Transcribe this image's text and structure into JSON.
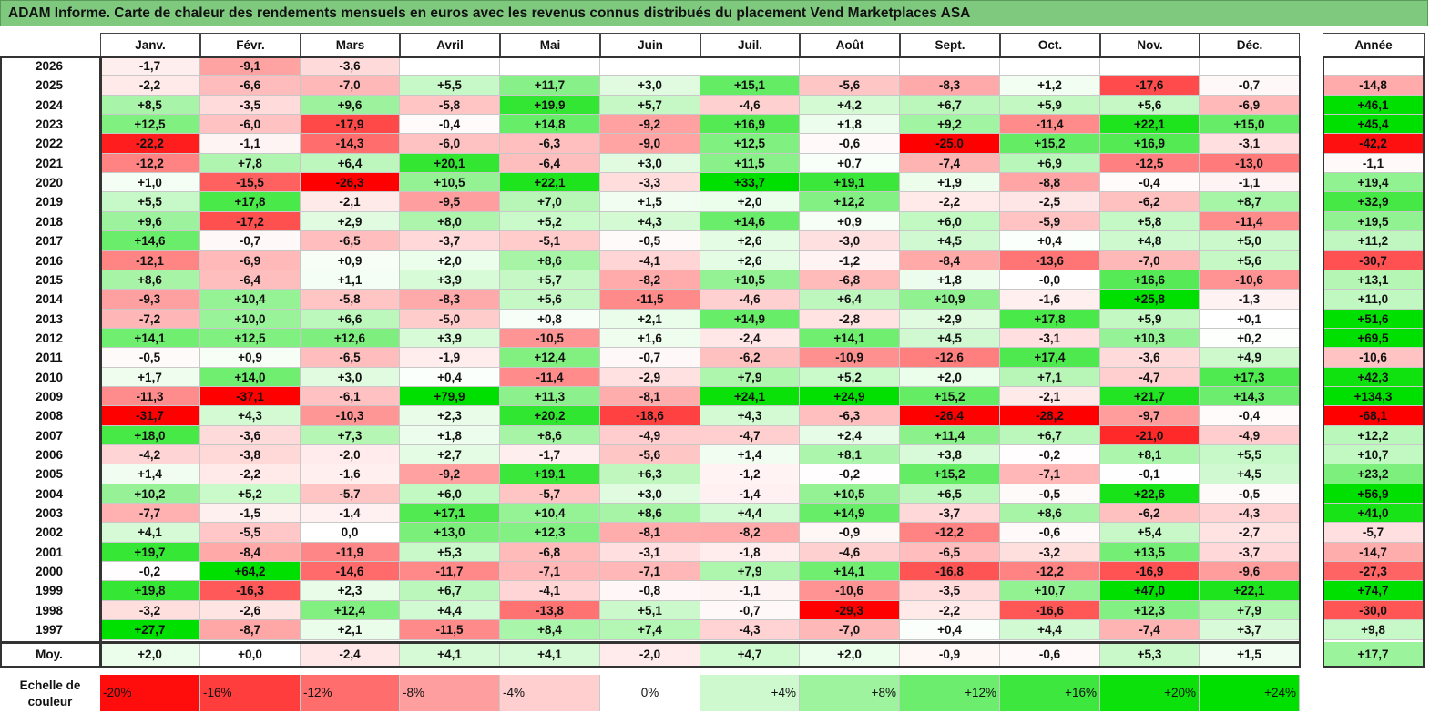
{
  "title": "ADAM Informe. Carte de chaleur des rendements mensuels en euros avec les revenus connus distribués du placement Vend Marketplaces ASA",
  "chart_data": {
    "type": "heatmap",
    "title": "ADAM Informe. Carte de chaleur des rendements mensuels en euros avec les revenus connus distribués du placement Vend Marketplaces ASA",
    "columns": [
      "Janv.",
      "Févr.",
      "Mars",
      "Avril",
      "Mai",
      "Juin",
      "Juil.",
      "Août",
      "Sept.",
      "Oct.",
      "Nov.",
      "Déc."
    ],
    "year_header": "Année",
    "rows": [
      {
        "year": "2026",
        "values": [
          "-1,7",
          "-9,1",
          "-3,6",
          "",
          "",
          "",
          "",
          "",
          "",
          "",
          "",
          ""
        ],
        "total": ""
      },
      {
        "year": "2025",
        "values": [
          "-2,2",
          "-6,6",
          "-7,0",
          "+5,5",
          "+11,7",
          "+3,0",
          "+15,1",
          "-5,6",
          "-8,3",
          "+1,2",
          "-17,6",
          "-0,7"
        ],
        "total": "-14,8"
      },
      {
        "year": "2024",
        "values": [
          "+8,5",
          "-3,5",
          "+9,6",
          "-5,8",
          "+19,9",
          "+5,7",
          "-4,6",
          "+4,2",
          "+6,7",
          "+5,9",
          "+5,6",
          "-6,9"
        ],
        "total": "+46,1"
      },
      {
        "year": "2023",
        "values": [
          "+12,5",
          "-6,0",
          "-17,9",
          "-0,4",
          "+14,8",
          "-9,2",
          "+16,9",
          "+1,8",
          "+9,2",
          "-11,4",
          "+22,1",
          "+15,0"
        ],
        "total": "+45,4"
      },
      {
        "year": "2022",
        "values": [
          "-22,2",
          "-1,1",
          "-14,3",
          "-6,0",
          "-6,3",
          "-9,0",
          "+12,5",
          "-0,6",
          "-25,0",
          "+15,2",
          "+16,9",
          "-3,1"
        ],
        "total": "-42,2"
      },
      {
        "year": "2021",
        "values": [
          "-12,2",
          "+7,8",
          "+6,4",
          "+20,1",
          "-6,4",
          "+3,0",
          "+11,5",
          "+0,7",
          "-7,4",
          "+6,9",
          "-12,5",
          "-13,0"
        ],
        "total": "-1,1"
      },
      {
        "year": "2020",
        "values": [
          "+1,0",
          "-15,5",
          "-26,3",
          "+10,5",
          "+22,1",
          "-3,3",
          "+33,7",
          "+19,1",
          "+1,9",
          "-8,8",
          "-0,4",
          "-1,1"
        ],
        "total": "+19,4"
      },
      {
        "year": "2019",
        "values": [
          "+5,5",
          "+17,8",
          "-2,1",
          "-9,5",
          "+7,0",
          "+1,5",
          "+2,0",
          "+12,2",
          "-2,2",
          "-2,5",
          "-6,2",
          "+8,7"
        ],
        "total": "+32,9"
      },
      {
        "year": "2018",
        "values": [
          "+9,6",
          "-17,2",
          "+2,9",
          "+8,0",
          "+5,2",
          "+4,3",
          "+14,6",
          "+0,9",
          "+6,0",
          "-5,9",
          "+5,8",
          "-11,4"
        ],
        "total": "+19,5"
      },
      {
        "year": "2017",
        "values": [
          "+14,6",
          "-0,7",
          "-6,5",
          "-3,7",
          "-5,1",
          "-0,5",
          "+2,6",
          "-3,0",
          "+4,5",
          "+0,4",
          "+4,8",
          "+5,0"
        ],
        "total": "+11,2"
      },
      {
        "year": "2016",
        "values": [
          "-12,1",
          "-6,9",
          "+0,9",
          "+2,0",
          "+8,6",
          "-4,1",
          "+2,6",
          "-1,2",
          "-8,4",
          "-13,6",
          "-7,0",
          "+5,6"
        ],
        "total": "-30,7"
      },
      {
        "year": "2015",
        "values": [
          "+8,6",
          "-6,4",
          "+1,1",
          "+3,9",
          "+5,7",
          "-8,2",
          "+10,5",
          "-6,8",
          "+1,8",
          "-0,0",
          "+16,6",
          "-10,6"
        ],
        "total": "+13,1"
      },
      {
        "year": "2014",
        "values": [
          "-9,3",
          "+10,4",
          "-5,8",
          "-8,3",
          "+5,6",
          "-11,5",
          "-4,6",
          "+6,4",
          "+10,9",
          "-1,6",
          "+25,8",
          "-1,3"
        ],
        "total": "+11,0"
      },
      {
        "year": "2013",
        "values": [
          "-7,2",
          "+10,0",
          "+6,6",
          "-5,0",
          "+0,8",
          "+2,1",
          "+14,9",
          "-2,8",
          "+2,9",
          "+17,8",
          "+5,9",
          "+0,1"
        ],
        "total": "+51,6"
      },
      {
        "year": "2012",
        "values": [
          "+14,1",
          "+12,5",
          "+12,6",
          "+3,9",
          "-10,5",
          "+1,6",
          "-2,4",
          "+14,1",
          "+4,5",
          "-3,1",
          "+10,3",
          "+0,2"
        ],
        "total": "+69,5"
      },
      {
        "year": "2011",
        "values": [
          "-0,5",
          "+0,9",
          "-6,5",
          "-1,9",
          "+12,4",
          "-0,7",
          "-6,2",
          "-10,9",
          "-12,6",
          "+17,4",
          "-3,6",
          "+4,9"
        ],
        "total": "-10,6"
      },
      {
        "year": "2010",
        "values": [
          "+1,7",
          "+14,0",
          "+3,0",
          "+0,4",
          "-11,4",
          "-2,9",
          "+7,9",
          "+5,2",
          "+2,0",
          "+7,1",
          "-4,7",
          "+17,3"
        ],
        "total": "+42,3"
      },
      {
        "year": "2009",
        "values": [
          "-11,3",
          "-37,1",
          "-6,1",
          "+79,9",
          "+11,3",
          "-8,1",
          "+24,1",
          "+24,9",
          "+15,2",
          "-2,1",
          "+21,7",
          "+14,3"
        ],
        "total": "+134,3"
      },
      {
        "year": "2008",
        "values": [
          "-31,7",
          "+4,3",
          "-10,3",
          "+2,3",
          "+20,2",
          "-18,6",
          "+4,3",
          "-6,3",
          "-26,4",
          "-28,2",
          "-9,7",
          "-0,4"
        ],
        "total": "-68,1"
      },
      {
        "year": "2007",
        "values": [
          "+18,0",
          "-3,6",
          "+7,3",
          "+1,8",
          "+8,6",
          "-4,9",
          "-4,7",
          "+2,4",
          "+11,4",
          "+6,7",
          "-21,0",
          "-4,9"
        ],
        "total": "+12,2"
      },
      {
        "year": "2006",
        "values": [
          "-4,2",
          "-3,8",
          "-2,0",
          "+2,7",
          "-1,7",
          "-5,6",
          "+1,4",
          "+8,1",
          "+3,8",
          "-0,2",
          "+8,1",
          "+5,5"
        ],
        "total": "+10,7"
      },
      {
        "year": "2005",
        "values": [
          "+1,4",
          "-2,2",
          "-1,6",
          "-9,2",
          "+19,1",
          "+6,3",
          "-1,2",
          "-0,2",
          "+15,2",
          "-7,1",
          "-0,1",
          "+4,5"
        ],
        "total": "+23,2"
      },
      {
        "year": "2004",
        "values": [
          "+10,2",
          "+5,2",
          "-5,7",
          "+6,0",
          "-5,7",
          "+3,0",
          "-1,4",
          "+10,5",
          "+6,5",
          "-0,5",
          "+22,6",
          "-0,5"
        ],
        "total": "+56,9"
      },
      {
        "year": "2003",
        "values": [
          "-7,7",
          "-1,5",
          "-1,4",
          "+17,1",
          "+10,4",
          "+8,6",
          "+4,4",
          "+14,9",
          "-3,7",
          "+8,6",
          "-6,2",
          "-4,3"
        ],
        "total": "+41,0"
      },
      {
        "year": "2002",
        "values": [
          "+4,1",
          "-5,5",
          "0,0",
          "+13,0",
          "+12,3",
          "-8,1",
          "-8,2",
          "-0,9",
          "-12,2",
          "-0,6",
          "+5,4",
          "-2,7"
        ],
        "total": "-5,7"
      },
      {
        "year": "2001",
        "values": [
          "+19,7",
          "-8,4",
          "-11,9",
          "+5,3",
          "-6,8",
          "-3,1",
          "-1,8",
          "-4,6",
          "-6,5",
          "-3,2",
          "+13,5",
          "-3,7"
        ],
        "total": "-14,7"
      },
      {
        "year": "2000",
        "values": [
          "-0,2",
          "+64,2",
          "-14,6",
          "-11,7",
          "-7,1",
          "-7,1",
          "+7,9",
          "+14,1",
          "-16,8",
          "-12,2",
          "-16,9",
          "-9,6"
        ],
        "total": "-27,3"
      },
      {
        "year": "1999",
        "values": [
          "+19,8",
          "-16,3",
          "+2,3",
          "+6,7",
          "-4,1",
          "-0,8",
          "-1,1",
          "-10,6",
          "-3,5",
          "+10,7",
          "+47,0",
          "+22,1"
        ],
        "total": "+74,7"
      },
      {
        "year": "1998",
        "values": [
          "-3,2",
          "-2,6",
          "+12,4",
          "+4,4",
          "-13,8",
          "+5,1",
          "-0,7",
          "-29,3",
          "-2,2",
          "-16,6",
          "+12,3",
          "+7,9"
        ],
        "total": "-30,0"
      },
      {
        "year": "1997",
        "values": [
          "+27,7",
          "-8,7",
          "+2,1",
          "-11,5",
          "+8,4",
          "+7,4",
          "-4,3",
          "-7,0",
          "+0,4",
          "+4,4",
          "-7,4",
          "+3,7"
        ],
        "total": "+9,8"
      }
    ],
    "average": {
      "label": "Moy.",
      "values": [
        "+2,0",
        "+0,0",
        "-2,4",
        "+4,1",
        "+4,1",
        "-2,0",
        "+4,7",
        "+2,0",
        "-0,9",
        "-0,6",
        "+5,3",
        "+1,5"
      ],
      "total": "+17,7"
    },
    "legend": {
      "label": "Echelle de couleur",
      "steps": [
        {
          "text": "-20%",
          "value": -20,
          "align": "left"
        },
        {
          "text": "-16%",
          "value": -16,
          "align": "left"
        },
        {
          "text": "-12%",
          "value": -12,
          "align": "left"
        },
        {
          "text": "-8%",
          "value": -8,
          "align": "left"
        },
        {
          "text": "-4%",
          "value": -4,
          "align": "left"
        },
        {
          "text": "0%",
          "value": 0,
          "align": "center"
        },
        {
          "text": "+4%",
          "value": 4,
          "align": "right"
        },
        {
          "text": "+8%",
          "value": 8,
          "align": "right"
        },
        {
          "text": "+12%",
          "value": 12,
          "align": "right"
        },
        {
          "text": "+16%",
          "value": 16,
          "align": "right"
        },
        {
          "text": "+20%",
          "value": 20,
          "align": "right"
        },
        {
          "text": "+24%",
          "value": 24,
          "align": "right"
        }
      ]
    },
    "colors": {
      "negative_max": "#ff0000",
      "neutral": "#ffffff",
      "positive_max": "#00e000",
      "title_bg": "#7fc97f"
    }
  }
}
